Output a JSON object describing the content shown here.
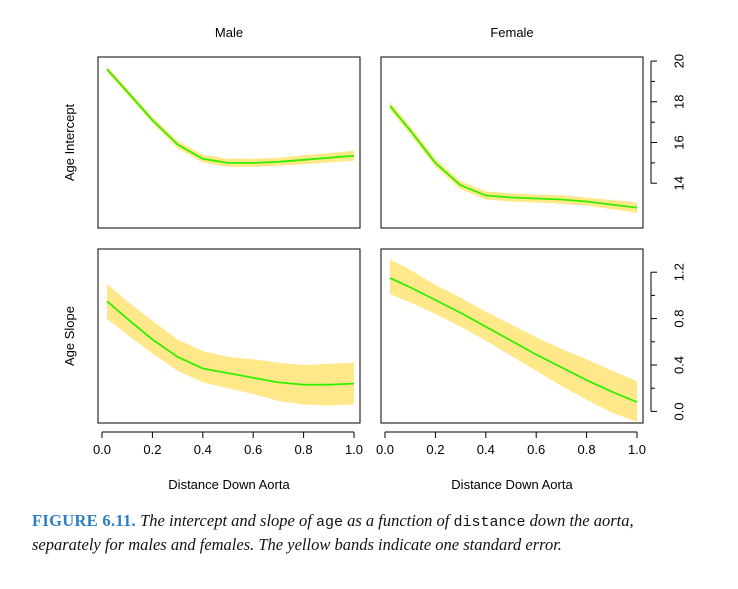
{
  "chart_data": [
    {
      "type": "line",
      "column_title": "Male",
      "ylabel": "Age Intercept",
      "xlabel": "",
      "xlim": [
        0,
        1
      ],
      "ylim": [
        11.8,
        20.2
      ],
      "x": [
        0.02,
        0.1,
        0.2,
        0.3,
        0.4,
        0.5,
        0.6,
        0.7,
        0.8,
        0.9,
        1.0
      ],
      "series": [
        {
          "role": "fit",
          "values": [
            19.6,
            18.5,
            17.1,
            15.9,
            15.2,
            15.0,
            15.0,
            15.05,
            15.15,
            15.25,
            15.35
          ]
        },
        {
          "role": "se_lower",
          "values": [
            19.45,
            18.35,
            16.95,
            15.72,
            15.02,
            14.8,
            14.8,
            14.85,
            14.93,
            15.02,
            15.1
          ]
        },
        {
          "role": "se_upper",
          "values": [
            19.75,
            18.65,
            17.25,
            16.08,
            15.4,
            15.2,
            15.2,
            15.25,
            15.37,
            15.48,
            15.6
          ]
        }
      ]
    },
    {
      "type": "line",
      "column_title": "Female",
      "ylabel": "",
      "xlabel": "",
      "xlim": [
        0,
        1
      ],
      "ylim": [
        11.8,
        20.2
      ],
      "yticks": [
        14,
        16,
        18,
        20
      ],
      "x": [
        0.02,
        0.1,
        0.2,
        0.3,
        0.4,
        0.5,
        0.6,
        0.7,
        0.8,
        0.9,
        1.0
      ],
      "series": [
        {
          "role": "fit",
          "values": [
            17.8,
            16.6,
            15.0,
            13.9,
            13.4,
            13.3,
            13.25,
            13.2,
            13.1,
            12.95,
            12.8
          ]
        },
        {
          "role": "se_lower",
          "values": [
            17.6,
            16.4,
            14.8,
            13.7,
            13.2,
            13.1,
            13.05,
            13.0,
            12.9,
            12.72,
            12.55
          ]
        },
        {
          "role": "se_upper",
          "values": [
            18.0,
            16.8,
            15.2,
            14.1,
            13.6,
            13.5,
            13.45,
            13.4,
            13.3,
            13.18,
            13.05
          ]
        }
      ]
    },
    {
      "type": "line",
      "ylabel": "Age Slope",
      "xlabel": "Distance Down Aorta",
      "xlim": [
        0,
        1
      ],
      "ylim": [
        -0.1,
        1.4
      ],
      "xticks": [
        "0.0",
        "0.2",
        "0.4",
        "0.6",
        "0.8",
        "1.0"
      ],
      "x": [
        0.02,
        0.1,
        0.2,
        0.3,
        0.4,
        0.5,
        0.6,
        0.7,
        0.8,
        0.9,
        1.0
      ],
      "series": [
        {
          "role": "fit",
          "values": [
            0.95,
            0.8,
            0.62,
            0.47,
            0.37,
            0.33,
            0.29,
            0.25,
            0.23,
            0.23,
            0.24
          ]
        },
        {
          "role": "se_lower",
          "values": [
            0.8,
            0.66,
            0.5,
            0.35,
            0.25,
            0.2,
            0.15,
            0.09,
            0.06,
            0.05,
            0.06
          ]
        },
        {
          "role": "se_upper",
          "values": [
            1.1,
            0.95,
            0.78,
            0.62,
            0.52,
            0.47,
            0.45,
            0.42,
            0.4,
            0.41,
            0.42
          ]
        }
      ]
    },
    {
      "type": "line",
      "ylabel": "",
      "xlabel": "Distance Down Aorta",
      "xlim": [
        0,
        1
      ],
      "ylim": [
        -0.1,
        1.4
      ],
      "xticks": [
        "0.0",
        "0.2",
        "0.4",
        "0.6",
        "0.8",
        "1.0"
      ],
      "yticks": [
        "0.0",
        "0.4",
        "0.8",
        "1.2"
      ],
      "x": [
        0.02,
        0.1,
        0.2,
        0.3,
        0.4,
        0.5,
        0.6,
        0.7,
        0.8,
        0.9,
        1.0
      ],
      "series": [
        {
          "role": "fit",
          "values": [
            1.15,
            1.07,
            0.96,
            0.85,
            0.73,
            0.61,
            0.49,
            0.38,
            0.27,
            0.17,
            0.08
          ]
        },
        {
          "role": "se_lower",
          "values": [
            1.01,
            0.94,
            0.84,
            0.73,
            0.61,
            0.48,
            0.35,
            0.22,
            0.1,
            -0.01,
            -0.09
          ]
        },
        {
          "role": "se_upper",
          "values": [
            1.31,
            1.22,
            1.09,
            0.98,
            0.86,
            0.75,
            0.64,
            0.54,
            0.45,
            0.35,
            0.26
          ]
        }
      ]
    }
  ],
  "style": {
    "fit_color": "#33ee00",
    "band_color": "#ffe88a",
    "axis_color": "#000000"
  },
  "caption": {
    "figure_label": "FIGURE 6.11.",
    "text_1": " The intercept and slope of ",
    "code_1": "age",
    "text_2": " as a function of ",
    "code_2": "distance",
    "text_3": " down the aorta, separately for males and females. The yellow bands indicate one standard error."
  }
}
